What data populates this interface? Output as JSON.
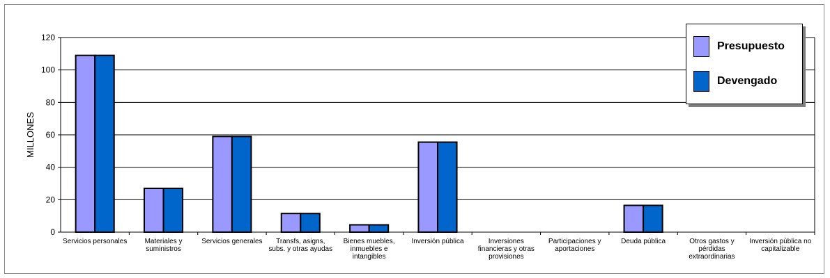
{
  "chart_data": {
    "type": "bar",
    "title": "",
    "xlabel": "",
    "ylabel": "MILLONES",
    "ylim": [
      0,
      120
    ],
    "yticks": [
      0,
      20,
      40,
      60,
      80,
      100,
      120
    ],
    "grid": true,
    "legend_position": "top-right",
    "categories": [
      [
        "Servicios personales"
      ],
      [
        "Materiales y",
        "suministros"
      ],
      [
        "Servicios generales"
      ],
      [
        "Transfs, asigns,",
        "subs. y otras ayudas"
      ],
      [
        "Bienes muebles,",
        "inmuebles e",
        "intangibles"
      ],
      [
        "Inversión pública"
      ],
      [
        "Inversiones",
        "financieras y otras",
        "provisiones"
      ],
      [
        "Participaciones y",
        "aportaciones"
      ],
      [
        "Deuda pública"
      ],
      [
        "Otros gastos y",
        "pérdidas",
        "extraordinarias"
      ],
      [
        "Inversión pública no",
        "capitalizable"
      ]
    ],
    "series": [
      {
        "name": "Presupuesto",
        "color": "#9999ff",
        "values": [
          109,
          27,
          59,
          11.5,
          4.5,
          55.5,
          0,
          0,
          16.5,
          0,
          0
        ]
      },
      {
        "name": "Devengado",
        "color": "#0066cc",
        "values": [
          109,
          27,
          59,
          11.5,
          4.5,
          55.5,
          0,
          0,
          16.5,
          0,
          0
        ]
      }
    ]
  }
}
